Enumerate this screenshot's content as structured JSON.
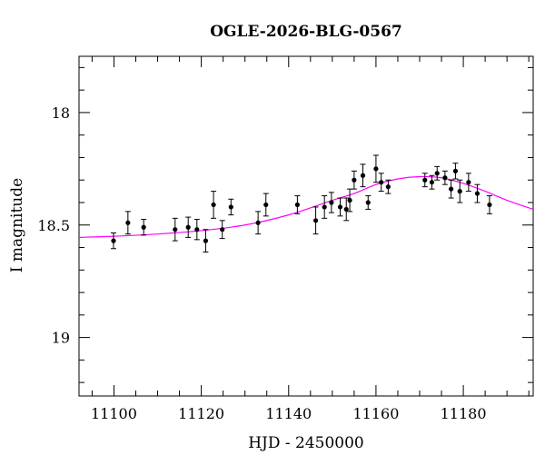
{
  "chart_data": {
    "type": "scatter",
    "title": "OGLE-2026-BLG-0567",
    "xlabel": "HJD - 2450000",
    "ylabel": "I magnitude",
    "xlim": [
      11092,
      11196
    ],
    "ylim": [
      19.26,
      17.75
    ],
    "y_inverted": true,
    "grid": false,
    "x_ticks": [
      11100,
      11120,
      11140,
      11160,
      11180
    ],
    "x_tick_labels": [
      "11100",
      "11120",
      "11140",
      "11160",
      "11180"
    ],
    "y_ticks": [
      18,
      18.5,
      19
    ],
    "y_tick_labels": [
      "18",
      "18.5",
      "19"
    ],
    "marker_color": "#000000",
    "model_color": "#ff00ff",
    "points": [
      {
        "x": 11099.9,
        "y": 18.57,
        "err": 0.035
      },
      {
        "x": 11103.2,
        "y": 18.49,
        "err": 0.05
      },
      {
        "x": 11106.8,
        "y": 18.51,
        "err": 0.035
      },
      {
        "x": 11114.0,
        "y": 18.52,
        "err": 0.05
      },
      {
        "x": 11117.0,
        "y": 18.51,
        "err": 0.045
      },
      {
        "x": 11119.0,
        "y": 18.52,
        "err": 0.045
      },
      {
        "x": 11121.0,
        "y": 18.57,
        "err": 0.05
      },
      {
        "x": 11122.8,
        "y": 18.41,
        "err": 0.06
      },
      {
        "x": 11124.8,
        "y": 18.52,
        "err": 0.04
      },
      {
        "x": 11126.8,
        "y": 18.42,
        "err": 0.035
      },
      {
        "x": 11133.0,
        "y": 18.49,
        "err": 0.05
      },
      {
        "x": 11134.8,
        "y": 18.41,
        "err": 0.05
      },
      {
        "x": 11142.0,
        "y": 18.41,
        "err": 0.04
      },
      {
        "x": 11146.2,
        "y": 18.48,
        "err": 0.06
      },
      {
        "x": 11148.2,
        "y": 18.42,
        "err": 0.05
      },
      {
        "x": 11149.8,
        "y": 18.4,
        "err": 0.045
      },
      {
        "x": 11151.8,
        "y": 18.42,
        "err": 0.04
      },
      {
        "x": 11153.2,
        "y": 18.43,
        "err": 0.05
      },
      {
        "x": 11154.0,
        "y": 18.39,
        "err": 0.05
      },
      {
        "x": 11155.0,
        "y": 18.3,
        "err": 0.04
      },
      {
        "x": 11157.0,
        "y": 18.28,
        "err": 0.05
      },
      {
        "x": 11158.2,
        "y": 18.4,
        "err": 0.03
      },
      {
        "x": 11160.0,
        "y": 18.25,
        "err": 0.06
      },
      {
        "x": 11161.2,
        "y": 18.31,
        "err": 0.04
      },
      {
        "x": 11162.8,
        "y": 18.33,
        "err": 0.03
      },
      {
        "x": 11171.2,
        "y": 18.3,
        "err": 0.03
      },
      {
        "x": 11172.8,
        "y": 18.31,
        "err": 0.03
      },
      {
        "x": 11174.0,
        "y": 18.27,
        "err": 0.03
      },
      {
        "x": 11175.8,
        "y": 18.29,
        "err": 0.03
      },
      {
        "x": 11177.2,
        "y": 18.34,
        "err": 0.04
      },
      {
        "x": 11178.2,
        "y": 18.26,
        "err": 0.035
      },
      {
        "x": 11179.2,
        "y": 18.35,
        "err": 0.05
      },
      {
        "x": 11181.2,
        "y": 18.31,
        "err": 0.04
      },
      {
        "x": 11183.2,
        "y": 18.36,
        "err": 0.04
      },
      {
        "x": 11186.0,
        "y": 18.41,
        "err": 0.04
      }
    ],
    "model_curve": [
      {
        "x": 11092,
        "y": 18.555
      },
      {
        "x": 11100,
        "y": 18.55
      },
      {
        "x": 11110,
        "y": 18.54
      },
      {
        "x": 11120,
        "y": 18.525
      },
      {
        "x": 11130,
        "y": 18.5
      },
      {
        "x": 11140,
        "y": 18.455
      },
      {
        "x": 11150,
        "y": 18.39
      },
      {
        "x": 11155,
        "y": 18.36
      },
      {
        "x": 11160,
        "y": 18.32
      },
      {
        "x": 11165,
        "y": 18.295
      },
      {
        "x": 11170,
        "y": 18.285
      },
      {
        "x": 11175,
        "y": 18.29
      },
      {
        "x": 11180,
        "y": 18.315
      },
      {
        "x": 11185,
        "y": 18.35
      },
      {
        "x": 11190,
        "y": 18.39
      },
      {
        "x": 11196,
        "y": 18.43
      }
    ]
  }
}
